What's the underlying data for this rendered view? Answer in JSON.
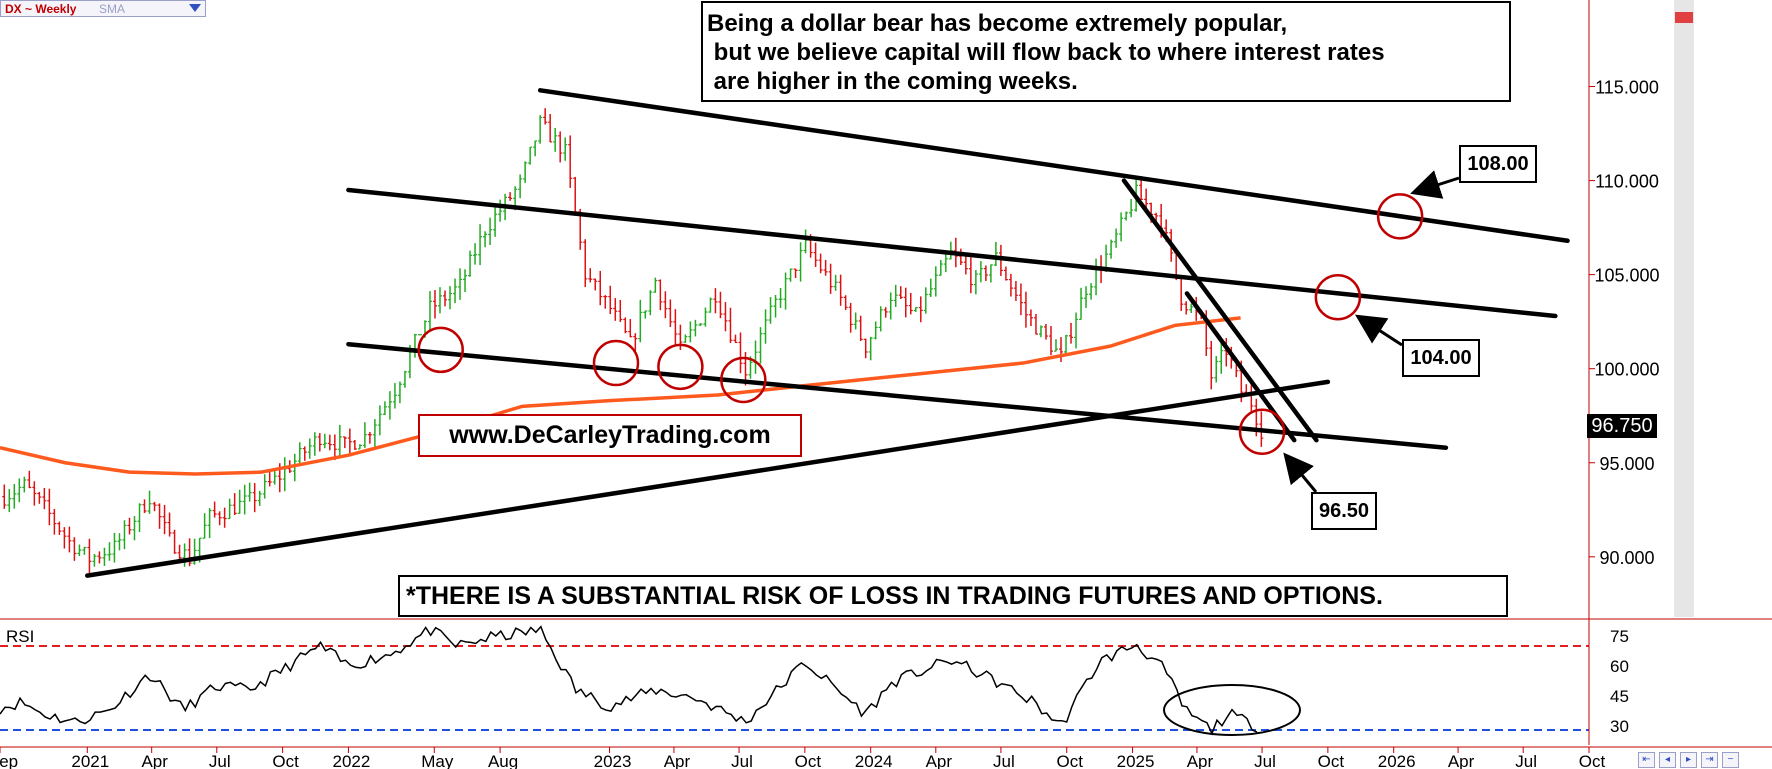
{
  "legend": {
    "symbol": "DX ~ Weekly",
    "indicator": "SMA"
  },
  "headline": "Being a dollar bear has become extremely popular,\n but we believe capital will flow back to where interest rates\n are higher in the coming weeks.",
  "disclaimer": "*THERE IS A SUBSTANTIAL RISK OF LOSS IN TRADING FUTURES AND OPTIONS.",
  "website": "www.DeCarleyTrading.com",
  "price_labels": {
    "upper": "108.00",
    "middle": "104.00",
    "lower": "96.50"
  },
  "last_price": "96.750",
  "rsi_label": "RSI",
  "nav_buttons": [
    "⇤",
    "◂",
    "▸",
    "⇥",
    "−"
  ],
  "colors": {
    "up_bar": "#22aa22",
    "down_bar": "#dd1111",
    "sma": "#ff5a1e",
    "ellipse": "#c00000",
    "rsi_overbought": "#e02020",
    "rsi_oversold": "#2050e0",
    "axis": "#c00000"
  },
  "chart_data": {
    "type": "bar",
    "title": "DX ~ Weekly",
    "y_ticks": [
      "115.000",
      "110.000",
      "105.000",
      "100.000",
      "95.000",
      "90.000"
    ],
    "y_tick_values": [
      115,
      110,
      105,
      100,
      95,
      90
    ],
    "ylim": [
      86.8,
      119.6
    ],
    "x_ticks": [
      "Sep",
      "2021",
      "Apr",
      "Jul",
      "Oct",
      "2022",
      "May",
      "Aug",
      "2023",
      "Apr",
      "Jul",
      "Oct",
      "2024",
      "Apr",
      "Jul",
      "Oct",
      "2025",
      "Apr",
      "Jul",
      "Oct",
      "2026",
      "Apr",
      "Jul",
      "Oct"
    ],
    "x_tick_dates": [
      "2020-09-01",
      "2021-01-01",
      "2021-04-01",
      "2021-07-01",
      "2021-10-01",
      "2022-01-01",
      "2022-05-01",
      "2022-08-01",
      "2023-01-01",
      "2023-04-01",
      "2023-07-01",
      "2023-10-01",
      "2024-01-01",
      "2024-04-01",
      "2024-07-01",
      "2024-10-01",
      "2025-01-01",
      "2025-04-01",
      "2025-07-01",
      "2025-10-01",
      "2026-01-01",
      "2026-04-01",
      "2026-07-01",
      "2026-10-01"
    ],
    "close_anchors": [
      [
        "2020-09-07",
        93.2
      ],
      [
        "2020-10-05",
        93.8
      ],
      [
        "2020-11-02",
        92.6
      ],
      [
        "2020-12-07",
        90.8
      ],
      [
        "2021-01-04",
        89.9
      ],
      [
        "2021-02-08",
        90.5
      ],
      [
        "2021-03-29",
        93.2
      ],
      [
        "2021-04-26",
        90.9
      ],
      [
        "2021-05-24",
        89.9
      ],
      [
        "2021-06-21",
        92.1
      ],
      [
        "2021-08-16",
        93.0
      ],
      [
        "2021-09-27",
        94.3
      ],
      [
        "2021-11-22",
        96.4
      ],
      [
        "2021-12-27",
        95.9
      ],
      [
        "2022-01-24",
        96.4
      ],
      [
        "2022-03-07",
        98.9
      ],
      [
        "2022-04-25",
        103.2
      ],
      [
        "2022-06-06",
        104.4
      ],
      [
        "2022-07-11",
        107.4
      ],
      [
        "2022-08-29",
        109.8
      ],
      [
        "2022-09-26",
        113.0
      ],
      [
        "2022-10-31",
        111.5
      ],
      [
        "2022-11-28",
        105.0
      ],
      [
        "2023-01-02",
        103.2
      ],
      [
        "2023-01-30",
        101.3
      ],
      [
        "2023-03-06",
        104.7
      ],
      [
        "2023-04-10",
        101.0
      ],
      [
        "2023-05-29",
        104.0
      ],
      [
        "2023-07-10",
        99.9
      ],
      [
        "2023-08-21",
        103.5
      ],
      [
        "2023-10-02",
        106.5
      ],
      [
        "2023-11-13",
        104.2
      ],
      [
        "2023-12-25",
        101.2
      ],
      [
        "2024-01-29",
        103.9
      ],
      [
        "2024-03-04",
        102.8
      ],
      [
        "2024-04-22",
        106.1
      ],
      [
        "2024-05-27",
        104.6
      ],
      [
        "2024-06-24",
        105.9
      ],
      [
        "2024-08-05",
        102.9
      ],
      [
        "2024-09-23",
        100.6
      ],
      [
        "2024-10-28",
        104.3
      ],
      [
        "2024-12-02",
        106.4
      ],
      [
        "2025-01-06",
        109.3
      ],
      [
        "2025-02-10",
        107.9
      ],
      [
        "2025-03-10",
        103.8
      ],
      [
        "2025-04-07",
        102.5
      ],
      [
        "2025-04-21",
        99.6
      ],
      [
        "2025-05-12",
        101.0
      ],
      [
        "2025-06-02",
        98.8
      ],
      [
        "2025-06-16",
        98.2
      ],
      [
        "2025-06-30",
        96.75
      ]
    ],
    "sma_points": [
      [
        "2020-09-01",
        95.8
      ],
      [
        "2020-12-01",
        95.0
      ],
      [
        "2021-03-01",
        94.5
      ],
      [
        "2021-06-01",
        94.4
      ],
      [
        "2021-09-01",
        94.5
      ],
      [
        "2022-01-01",
        95.4
      ],
      [
        "2022-05-01",
        96.6
      ],
      [
        "2022-09-01",
        98.0
      ],
      [
        "2023-01-01",
        98.3
      ],
      [
        "2023-06-01",
        98.6
      ],
      [
        "2023-10-01",
        99.1
      ],
      [
        "2024-03-01",
        99.7
      ],
      [
        "2024-08-01",
        100.3
      ],
      [
        "2024-12-01",
        101.2
      ],
      [
        "2025-03-01",
        102.3
      ],
      [
        "2025-06-01",
        102.7
      ]
    ],
    "trendlines": [
      {
        "from": [
          "2022-09-26",
          114.8
        ],
        "to": [
          "2026-09-01",
          106.8
        ]
      },
      {
        "from": [
          "2022-01-01",
          109.5
        ],
        "to": [
          "2026-08-15",
          102.8
        ]
      },
      {
        "from": [
          "2022-01-01",
          101.3
        ],
        "to": [
          "2026-03-15",
          95.8
        ]
      },
      {
        "from": [
          "2021-01-01",
          89.0
        ],
        "to": [
          "2025-10-01",
          99.3
        ]
      },
      {
        "from": [
          "2024-12-20",
          110.0
        ],
        "to": [
          "2025-09-15",
          96.2
        ]
      },
      {
        "from": [
          "2025-03-18",
          104.0
        ],
        "to": [
          "2025-08-15",
          96.2
        ]
      }
    ],
    "circles": [
      [
        "2022-05-10",
        101.0
      ],
      [
        "2023-01-10",
        100.3
      ],
      [
        "2023-04-10",
        100.1
      ],
      [
        "2023-07-07",
        99.4
      ],
      [
        "2025-07-01",
        96.65
      ],
      [
        "2025-10-15",
        103.8
      ],
      [
        "2026-01-10",
        108.1
      ]
    ],
    "arrows": [
      {
        "label": "108.00",
        "tip": [
          "2026-02-01",
          109.4
        ]
      },
      {
        "label": "104.00",
        "tip": [
          "2025-11-15",
          102.7
        ]
      },
      {
        "label": "96.50",
        "tip": [
          "2025-08-05",
          95.3
        ]
      }
    ],
    "rsi": {
      "label": "RSI",
      "ticks": [
        "75",
        "60",
        "45",
        "30"
      ],
      "tick_values": [
        75,
        60,
        45,
        30
      ],
      "overbought": 70,
      "oversold": 28,
      "ylim": [
        22,
        82
      ],
      "points": [
        [
          "2020-09-01",
          39
        ],
        [
          "2020-10-01",
          42
        ],
        [
          "2020-11-01",
          36
        ],
        [
          "2020-12-15",
          32
        ],
        [
          "2021-02-01",
          38
        ],
        [
          "2021-03-29",
          56
        ],
        [
          "2021-05-15",
          38
        ],
        [
          "2021-07-01",
          50
        ],
        [
          "2021-08-15",
          48
        ],
        [
          "2021-10-01",
          58
        ],
        [
          "2021-11-22",
          70
        ],
        [
          "2022-01-01",
          60
        ],
        [
          "2022-03-01",
          66
        ],
        [
          "2022-04-25",
          78
        ],
        [
          "2022-06-01",
          70
        ],
        [
          "2022-07-15",
          74
        ],
        [
          "2022-09-26",
          78
        ],
        [
          "2022-11-15",
          48
        ],
        [
          "2023-01-01",
          40
        ],
        [
          "2023-03-06",
          48
        ],
        [
          "2023-05-01",
          44
        ],
        [
          "2023-07-10",
          32
        ],
        [
          "2023-10-01",
          62
        ],
        [
          "2023-12-25",
          36
        ],
        [
          "2024-02-01",
          52
        ],
        [
          "2024-04-22",
          63
        ],
        [
          "2024-06-15",
          54
        ],
        [
          "2024-08-15",
          42
        ],
        [
          "2024-09-23",
          30
        ],
        [
          "2024-11-15",
          62
        ],
        [
          "2025-01-06",
          71
        ],
        [
          "2025-02-15",
          58
        ],
        [
          "2025-03-15",
          38
        ],
        [
          "2025-04-21",
          28
        ],
        [
          "2025-05-15",
          36
        ],
        [
          "2025-06-30",
          29
        ]
      ],
      "ellipse_center": [
        "2025-05-20",
        38
      ]
    }
  }
}
